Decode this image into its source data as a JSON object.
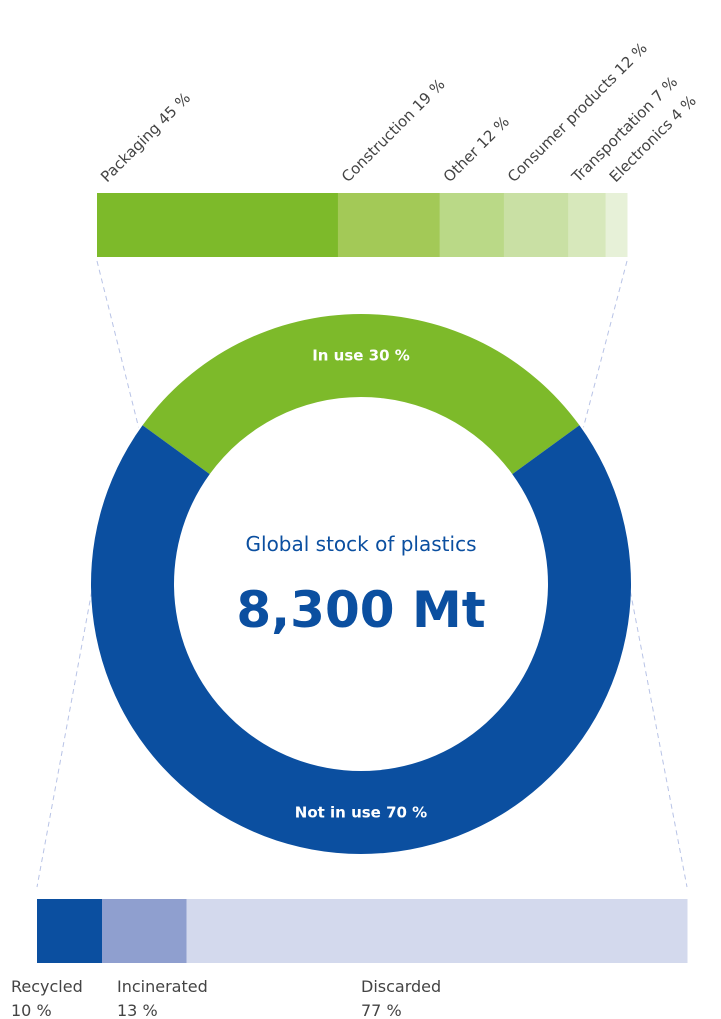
{
  "chart_data": [
    {
      "type": "bar",
      "orientation": "stacked-horizontal",
      "categories": [
        "Packaging",
        "Construction",
        "Other",
        "Consumer products",
        "Transportation",
        "Electronics"
      ],
      "values": [
        45,
        19,
        12,
        12,
        7,
        4
      ],
      "labels": [
        "Packaging 45 %",
        "Construction 19 %",
        "Other 12 %",
        "Consumer products 12 %",
        "Transportation 7 %",
        "Electronics 4 %"
      ],
      "colors": [
        "#7dba2a",
        "#a3c957",
        "#bad987",
        "#c9e0a4",
        "#d7e8bb",
        "#e7f1d8"
      ]
    },
    {
      "type": "pie",
      "style": "donut",
      "categories": [
        "In use",
        "Not in use"
      ],
      "values": [
        30,
        70
      ],
      "labels": [
        "In use 30 %",
        "Not in use 70 %"
      ],
      "colors": [
        "#7dba2a",
        "#0b4fa0"
      ],
      "center_subtitle": "Global stock of plastics",
      "center_value": "8,300 Mt"
    },
    {
      "type": "bar",
      "orientation": "stacked-horizontal",
      "categories": [
        "Recycled",
        "Incinerated",
        "Discarded"
      ],
      "values": [
        10,
        13,
        77
      ],
      "percent_labels": [
        "10 %",
        "13 %",
        "77 %"
      ],
      "colors": [
        "#0b4fa0",
        "#8f9fcf",
        "#d3d9ed"
      ]
    }
  ],
  "connector_color": "#b8c3e6"
}
